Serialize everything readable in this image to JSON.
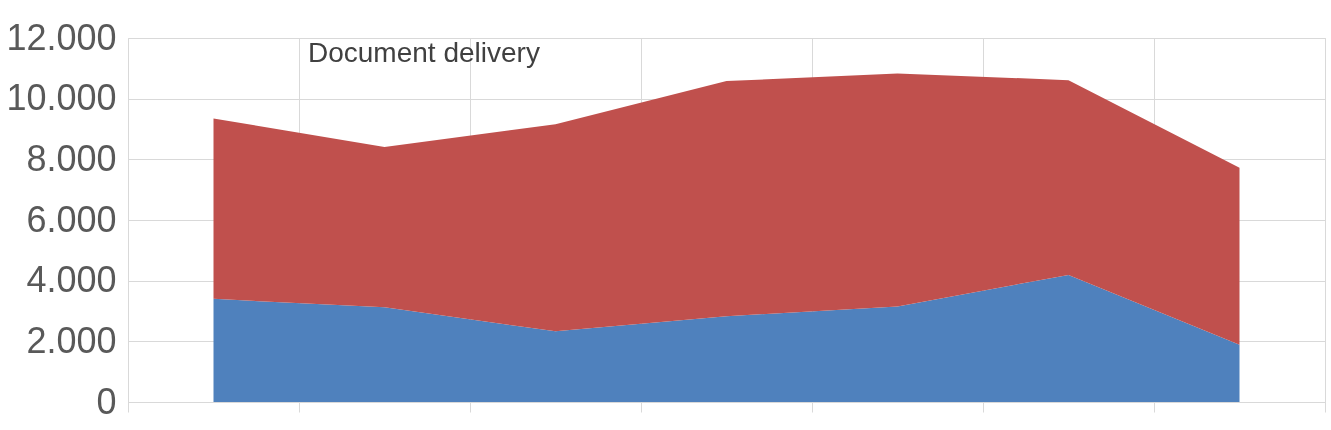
{
  "chart_data": {
    "type": "area",
    "title": "Document delivery",
    "stacked": true,
    "categories": [
      null,
      null,
      null,
      null,
      null,
      null,
      null
    ],
    "series": [
      {
        "color": "#4f81bd",
        "values": [
          3400,
          3120,
          2330,
          2830,
          3150,
          4190,
          1890
        ]
      },
      {
        "color": "#c0504d",
        "values": [
          5950,
          5290,
          6830,
          7750,
          7680,
          6420,
          5830
        ]
      }
    ],
    "ylim": [
      0,
      12000
    ],
    "yticks": [
      0,
      {
        "value": 2000,
        "label": "2.000"
      },
      {
        "value": 4000,
        "label": "4.000"
      },
      {
        "value": 6000,
        "label": "6.000"
      },
      {
        "value": 8000,
        "label": "8.000"
      },
      {
        "value": 10000,
        "label": "10.000"
      },
      {
        "value": 12000,
        "label": "12.000"
      }
    ],
    "grid": true,
    "tick_labels": "y"
  }
}
